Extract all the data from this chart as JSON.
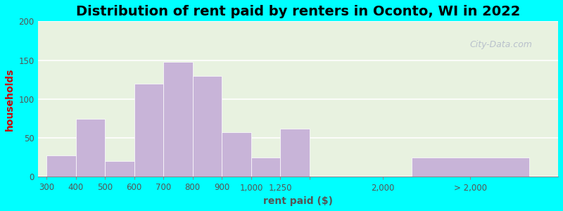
{
  "title": "Distribution of rent paid by renters in Oconto, WI in 2022",
  "xlabel": "rent paid ($)",
  "ylabel": "households",
  "bar_color": "#c8b4d8",
  "background_color_top": "#f0f4e8",
  "background_color_bottom": "#d8f0e8",
  "outer_background": "#00ffff",
  "ylim": [
    0,
    200
  ],
  "yticks": [
    0,
    50,
    100,
    150,
    200
  ],
  "bar_values": [
    28,
    75,
    20,
    120,
    148,
    130,
    57,
    25,
    62,
    25
  ],
  "bar_tick_labels": [
    "300",
    "400",
    "500",
    "600",
    "700",
    "800",
    "900 1,000",
    "1,250",
    "2,000",
    "> 2,000"
  ],
  "title_fontsize": 14,
  "axis_label_fontsize": 10,
  "tick_fontsize": 8.5,
  "watermark_text": "City-Data.com",
  "watermark_color": "#b0b8c8",
  "grid_color": "#ffffff",
  "ylabel_color": "#cc0000"
}
